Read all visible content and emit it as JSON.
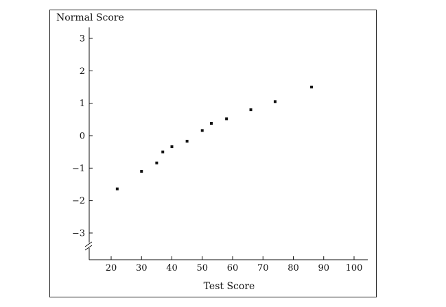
{
  "chart_data": {
    "type": "scatter",
    "title": "",
    "xlabel": "Test Score",
    "ylabel": "Normal Score",
    "xlim": [
      10,
      105
    ],
    "ylim": [
      -3.5,
      3.4
    ],
    "x_ticks": [
      20,
      30,
      40,
      50,
      60,
      70,
      80,
      90,
      100
    ],
    "y_ticks": [
      -3,
      -2,
      -1,
      0,
      1,
      2,
      3
    ],
    "y_axis_break": true,
    "grid": false,
    "points": [
      {
        "x": 22,
        "y": -1.64
      },
      {
        "x": 30,
        "y": -1.1
      },
      {
        "x": 35,
        "y": -0.84
      },
      {
        "x": 37,
        "y": -0.5
      },
      {
        "x": 40,
        "y": -0.34
      },
      {
        "x": 45,
        "y": -0.17
      },
      {
        "x": 50,
        "y": 0.16
      },
      {
        "x": 53,
        "y": 0.38
      },
      {
        "x": 58,
        "y": 0.52
      },
      {
        "x": 66,
        "y": 0.8
      },
      {
        "x": 74,
        "y": 1.05
      },
      {
        "x": 86,
        "y": 1.5
      }
    ],
    "colors": {
      "marker": "#111111",
      "axis": "#111111",
      "frame": "#222222"
    }
  }
}
